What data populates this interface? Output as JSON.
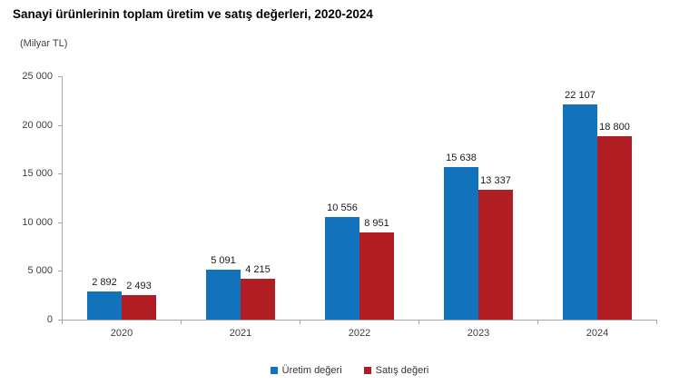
{
  "chart_data": {
    "type": "bar",
    "title": "Sanayi ürünlerinin toplam üretim ve satış değerleri, 2020-2024",
    "unit_label": "(Milyar TL)",
    "categories": [
      "2020",
      "2021",
      "2022",
      "2023",
      "2024"
    ],
    "series": [
      {
        "name": "Üretim değeri",
        "color": "#1272bc",
        "values": [
          2892,
          5091,
          10556,
          15638,
          22107
        ]
      },
      {
        "name": "Satış değeri",
        "color": "#b01e24",
        "values": [
          2493,
          4215,
          8951,
          13337,
          18800
        ]
      }
    ],
    "ylim": [
      0,
      25000
    ],
    "ytick_step": 5000,
    "ytick_labels": [
      "0",
      "5 000",
      "10 000",
      "15 000",
      "20 000",
      "25 000"
    ],
    "grid": false,
    "legend_position": "bottom",
    "axis_color": "#a6a6a6"
  }
}
